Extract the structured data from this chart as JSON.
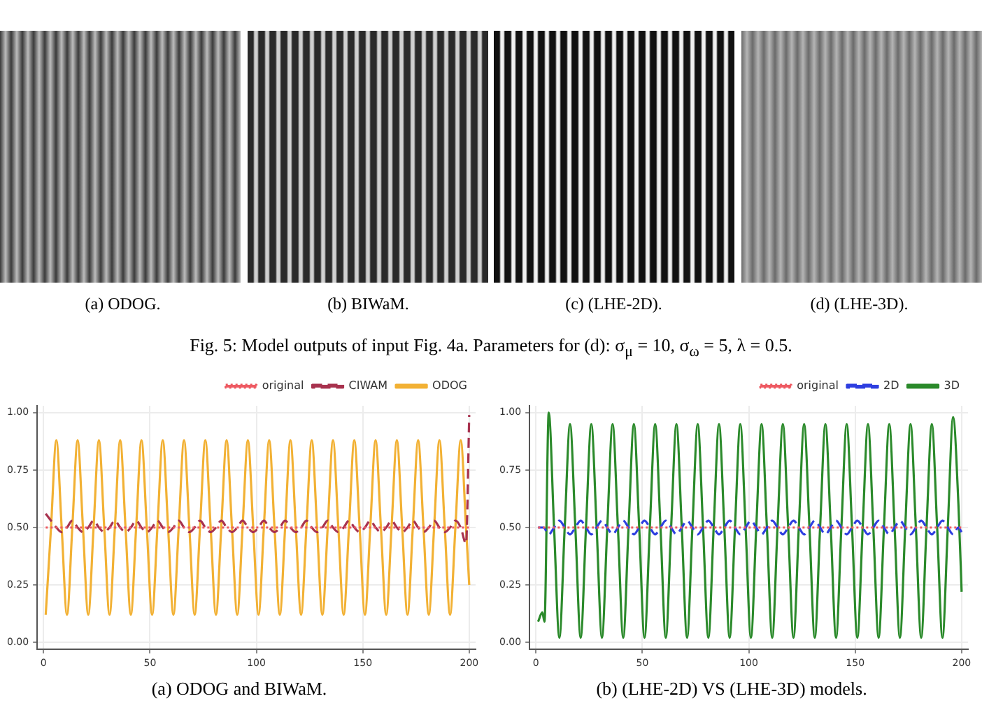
{
  "chart_data": [
    {
      "type": "other",
      "annotations": [
        "(a) ODOG.",
        "(b) BIWaM.",
        "(c) (LHE-2D).",
        "(d) (LHE-3D).",
        "Fig. 5: Model outputs of input Fig. 4a. Parameters for (d): σ$_{μ}$ = 10, σ$_{ω}$ = 5, λ = 0.5."
      ]
    },
    {
      "type": "line",
      "title": "(a) ODOG and BIWaM.",
      "xlim": [
        -3,
        203
      ],
      "xticks": [
        0,
        50,
        100,
        150,
        200
      ],
      "ylim": [
        -0.03,
        1.03
      ],
      "yticks": [
        {
          "value": 0,
          "label": "0.00"
        },
        {
          "value": 0.25,
          "label": "0.25"
        },
        {
          "value": 0.5,
          "label": "0.50"
        },
        {
          "value": 0.75,
          "label": "0.75"
        },
        {
          "value": 1,
          "label": "1.00"
        }
      ],
      "grid": true,
      "legend": "top right",
      "marker": "none",
      "series": [
        {
          "name": "original",
          "color": "#ee5a62",
          "line_style": "dotted",
          "x": [
            1,
            200
          ],
          "values": [
            0.5,
            0.5
          ]
        },
        {
          "name": "CIWAM",
          "color": "#a8324e",
          "line_style": "dashed",
          "x": [
            1,
            3.5,
            6,
            8.5,
            11,
            13.5,
            16,
            18.5,
            21,
            23.5,
            26,
            28.5,
            31,
            33.5,
            36,
            38.5,
            41,
            43.5,
            46,
            48.5,
            51,
            53.5,
            56,
            58.5,
            61,
            63.5,
            66,
            68.5,
            71,
            73.5,
            76,
            78.5,
            81,
            83.5,
            86,
            88.5,
            91,
            93.5,
            96,
            98.5,
            101,
            103.5,
            106,
            108.5,
            111,
            113.5,
            116,
            118.5,
            121,
            123.5,
            126,
            128.5,
            131,
            133.5,
            136,
            138.5,
            141,
            143.5,
            146,
            148.5,
            151,
            153.5,
            156,
            158.5,
            161,
            163.5,
            166,
            168.5,
            171,
            173.5,
            176,
            178.5,
            181,
            183.5,
            186,
            188.5,
            191,
            193.5,
            196,
            198.5,
            200
          ],
          "values": [
            0.56,
            0.53,
            0.5,
            0.48,
            0.5,
            0.53,
            0.5,
            0.48,
            0.5,
            0.53,
            0.5,
            0.48,
            0.5,
            0.53,
            0.5,
            0.48,
            0.5,
            0.53,
            0.5,
            0.48,
            0.5,
            0.53,
            0.5,
            0.48,
            0.5,
            0.53,
            0.5,
            0.48,
            0.5,
            0.53,
            0.5,
            0.48,
            0.5,
            0.53,
            0.5,
            0.48,
            0.5,
            0.53,
            0.5,
            0.48,
            0.5,
            0.53,
            0.5,
            0.48,
            0.5,
            0.53,
            0.5,
            0.48,
            0.5,
            0.53,
            0.5,
            0.48,
            0.5,
            0.53,
            0.5,
            0.48,
            0.5,
            0.53,
            0.5,
            0.48,
            0.5,
            0.53,
            0.5,
            0.48,
            0.5,
            0.53,
            0.5,
            0.48,
            0.5,
            0.53,
            0.5,
            0.48,
            0.5,
            0.53,
            0.5,
            0.48,
            0.5,
            0.53,
            0.5,
            0.43,
            0.99
          ]
        },
        {
          "name": "ODOG",
          "color": "#f2b134",
          "line_style": "solid",
          "x": [
            1,
            3.5,
            6,
            8.5,
            11,
            13.5,
            16,
            18.5,
            21,
            23.5,
            26,
            28.5,
            31,
            33.5,
            36,
            38.5,
            41,
            43.5,
            46,
            48.5,
            51,
            53.5,
            56,
            58.5,
            61,
            63.5,
            66,
            68.5,
            71,
            73.5,
            76,
            78.5,
            81,
            83.5,
            86,
            88.5,
            91,
            93.5,
            96,
            98.5,
            101,
            103.5,
            106,
            108.5,
            111,
            113.5,
            116,
            118.5,
            121,
            123.5,
            126,
            128.5,
            131,
            133.5,
            136,
            138.5,
            141,
            143.5,
            146,
            148.5,
            151,
            153.5,
            156,
            158.5,
            161,
            163.5,
            166,
            168.5,
            171,
            173.5,
            176,
            178.5,
            181,
            183.5,
            186,
            188.5,
            191,
            193.5,
            196,
            198.5,
            200
          ],
          "values": [
            0.12,
            0.5,
            0.88,
            0.5,
            0.12,
            0.5,
            0.88,
            0.5,
            0.12,
            0.5,
            0.88,
            0.5,
            0.12,
            0.5,
            0.88,
            0.5,
            0.12,
            0.5,
            0.88,
            0.5,
            0.12,
            0.5,
            0.88,
            0.5,
            0.12,
            0.5,
            0.88,
            0.5,
            0.12,
            0.5,
            0.88,
            0.5,
            0.12,
            0.5,
            0.88,
            0.5,
            0.12,
            0.5,
            0.88,
            0.5,
            0.12,
            0.5,
            0.88,
            0.5,
            0.12,
            0.5,
            0.88,
            0.5,
            0.12,
            0.5,
            0.88,
            0.5,
            0.12,
            0.5,
            0.88,
            0.5,
            0.12,
            0.5,
            0.88,
            0.5,
            0.12,
            0.5,
            0.88,
            0.5,
            0.12,
            0.5,
            0.88,
            0.5,
            0.12,
            0.5,
            0.88,
            0.5,
            0.12,
            0.5,
            0.88,
            0.5,
            0.12,
            0.5,
            0.88,
            0.5,
            0.25
          ]
        }
      ]
    },
    {
      "type": "line",
      "title": "(b) (LHE-2D) VS (LHE-3D) models.",
      "xlim": [
        -3,
        203
      ],
      "xticks": [
        0,
        50,
        100,
        150,
        200
      ],
      "ylim": [
        -0.03,
        1.03
      ],
      "yticks": [
        {
          "value": 0,
          "label": "0.00"
        },
        {
          "value": 0.25,
          "label": "0.25"
        },
        {
          "value": 0.5,
          "label": "0.50"
        },
        {
          "value": 0.75,
          "label": "0.75"
        },
        {
          "value": 1,
          "label": "1.00"
        }
      ],
      "grid": true,
      "legend": "top right",
      "marker": "none",
      "series": [
        {
          "name": "original",
          "color": "#ee5a62",
          "line_style": "dotted",
          "x": [
            1,
            200
          ],
          "values": [
            0.5,
            0.5
          ]
        },
        {
          "name": "2D",
          "color": "#2e3fe0",
          "line_style": "dashed",
          "x": [
            1,
            3.5,
            6,
            8.5,
            11,
            13.5,
            16,
            18.5,
            21,
            23.5,
            26,
            28.5,
            31,
            33.5,
            36,
            38.5,
            41,
            43.5,
            46,
            48.5,
            51,
            53.5,
            56,
            58.5,
            61,
            63.5,
            66,
            68.5,
            71,
            73.5,
            76,
            78.5,
            81,
            83.5,
            86,
            88.5,
            91,
            93.5,
            96,
            98.5,
            101,
            103.5,
            106,
            108.5,
            111,
            113.5,
            116,
            118.5,
            121,
            123.5,
            126,
            128.5,
            131,
            133.5,
            136,
            138.5,
            141,
            143.5,
            146,
            148.5,
            151,
            153.5,
            156,
            158.5,
            161,
            163.5,
            166,
            168.5,
            171,
            173.5,
            176,
            178.5,
            181,
            183.5,
            186,
            188.5,
            191,
            193.5,
            196,
            198.5,
            200
          ],
          "values": [
            0.5,
            0.5,
            0.47,
            0.5,
            0.53,
            0.5,
            0.47,
            0.5,
            0.53,
            0.5,
            0.47,
            0.5,
            0.53,
            0.5,
            0.47,
            0.5,
            0.53,
            0.5,
            0.47,
            0.5,
            0.53,
            0.5,
            0.47,
            0.5,
            0.53,
            0.5,
            0.47,
            0.5,
            0.53,
            0.5,
            0.47,
            0.5,
            0.53,
            0.5,
            0.47,
            0.5,
            0.53,
            0.5,
            0.47,
            0.5,
            0.53,
            0.5,
            0.47,
            0.5,
            0.53,
            0.5,
            0.47,
            0.5,
            0.53,
            0.5,
            0.47,
            0.5,
            0.53,
            0.5,
            0.47,
            0.5,
            0.53,
            0.5,
            0.47,
            0.5,
            0.53,
            0.5,
            0.47,
            0.5,
            0.53,
            0.5,
            0.47,
            0.5,
            0.53,
            0.5,
            0.47,
            0.5,
            0.53,
            0.5,
            0.47,
            0.5,
            0.53,
            0.5,
            0.47,
            0.5,
            0.48
          ]
        },
        {
          "name": "3D",
          "color": "#2b8a2b",
          "line_style": "solid",
          "x": [
            1,
            3,
            4,
            6,
            8.5,
            11,
            13.5,
            16,
            18.5,
            21,
            23.5,
            26,
            28.5,
            31,
            33.5,
            36,
            38.5,
            41,
            43.5,
            46,
            48.5,
            51,
            53.5,
            56,
            58.5,
            61,
            63.5,
            66,
            68.5,
            71,
            73.5,
            76,
            78.5,
            81,
            83.5,
            86,
            88.5,
            91,
            93.5,
            96,
            98.5,
            101,
            103.5,
            106,
            108.5,
            111,
            113.5,
            116,
            118.5,
            121,
            123.5,
            126,
            128.5,
            131,
            133.5,
            136,
            138.5,
            141,
            143.5,
            146,
            148.5,
            151,
            153.5,
            156,
            158.5,
            161,
            163.5,
            166,
            168.5,
            171,
            173.5,
            176,
            178.5,
            181,
            183.5,
            186,
            188.5,
            191,
            193.5,
            196,
            198.5,
            200
          ],
          "values": [
            0.09,
            0.13,
            0.09,
            1.0,
            0.5,
            0.02,
            0.5,
            0.95,
            0.5,
            0.02,
            0.5,
            0.95,
            0.5,
            0.02,
            0.5,
            0.95,
            0.5,
            0.02,
            0.5,
            0.95,
            0.5,
            0.02,
            0.5,
            0.95,
            0.5,
            0.02,
            0.5,
            0.95,
            0.5,
            0.02,
            0.5,
            0.95,
            0.5,
            0.02,
            0.5,
            0.95,
            0.5,
            0.02,
            0.5,
            0.95,
            0.5,
            0.02,
            0.5,
            0.95,
            0.5,
            0.02,
            0.5,
            0.95,
            0.5,
            0.02,
            0.5,
            0.95,
            0.5,
            0.02,
            0.5,
            0.95,
            0.5,
            0.02,
            0.5,
            0.95,
            0.5,
            0.02,
            0.5,
            0.95,
            0.5,
            0.02,
            0.5,
            0.95,
            0.5,
            0.02,
            0.5,
            0.95,
            0.5,
            0.02,
            0.5,
            0.95,
            0.5,
            0.02,
            0.5,
            0.98,
            0.6,
            0.22
          ]
        }
      ]
    }
  ]
}
